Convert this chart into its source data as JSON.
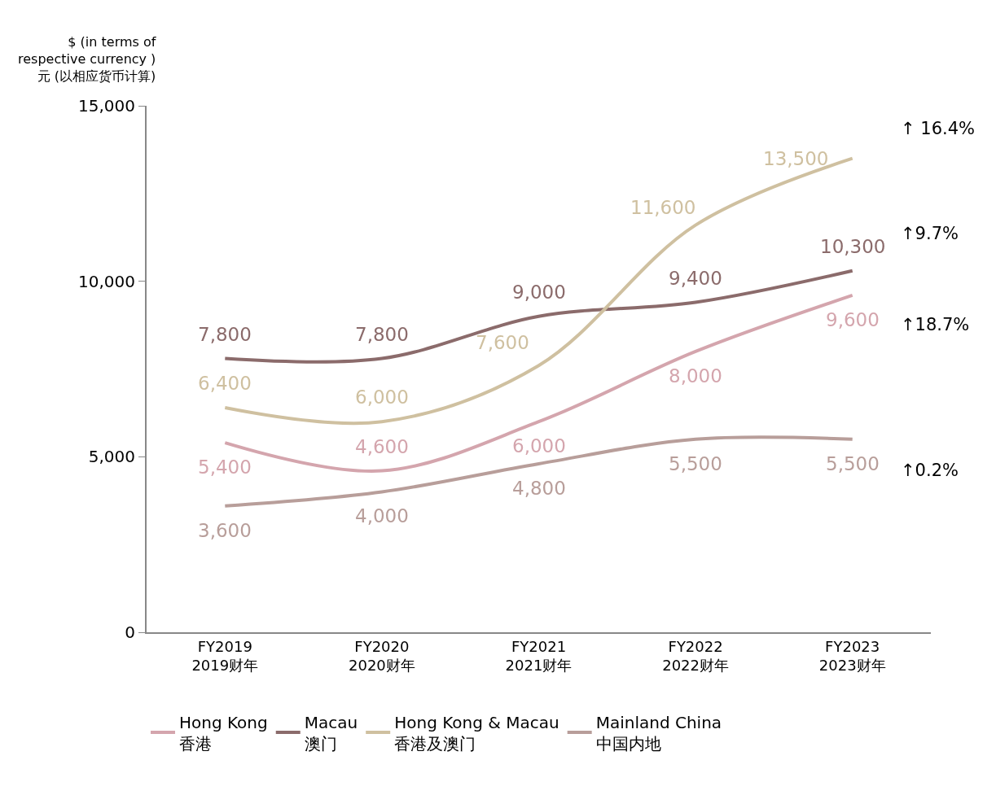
{
  "chart_data": {
    "type": "line",
    "ylabel": "$ (in terms of\nrespective currency )\n元 (以相应货币计算)",
    "categories": [
      "FY2019\n2019财年",
      "FY2020\n2020财年",
      "FY2021\n2021财年",
      "FY2022\n2022财年",
      "FY2023\n2023财年"
    ],
    "series": [
      {
        "name": "Hong Kong\n香港",
        "color": "#d4a5ad",
        "values": [
          5400,
          4600,
          6000,
          8000,
          9600
        ],
        "value_labels": [
          "5,400",
          "4,600",
          "6,000",
          "8,000",
          "9,600"
        ]
      },
      {
        "name": "Macau\n澳门",
        "color": "#8b6b6b",
        "values": [
          7800,
          7800,
          9000,
          9400,
          10300
        ],
        "value_labels": [
          "7,800",
          "7,800",
          "9,000",
          "9,400",
          "10,300"
        ]
      },
      {
        "name": "Hong Kong & Macau\n香港及澳门",
        "color": "#cfc0a0",
        "values": [
          6400,
          6000,
          7600,
          11600,
          13500
        ],
        "value_labels": [
          "6,400",
          "6,000",
          "7,600",
          "11,600",
          "13,500"
        ]
      },
      {
        "name": "Mainland China\n中国内地",
        "color": "#b89e9a",
        "values": [
          3600,
          4000,
          4800,
          5500,
          5500
        ],
        "value_labels": [
          "3,600",
          "4,000",
          "4,800",
          "5,500",
          "5,500"
        ]
      }
    ],
    "ylim": [
      0,
      15000
    ],
    "yticks": [
      0,
      {
        "value": 5000,
        "label": "5,000"
      },
      {
        "value": 10000,
        "label": "10,000"
      },
      {
        "value": 15000,
        "label": "15,000"
      }
    ],
    "grid": false,
    "legend": "bottom",
    "marker": "none",
    "line_style": "solid",
    "data_labels": true,
    "annotations": [
      "↑ 16.4%",
      "↑9.7%",
      "↑18.7%",
      "↑0.2%"
    ]
  }
}
